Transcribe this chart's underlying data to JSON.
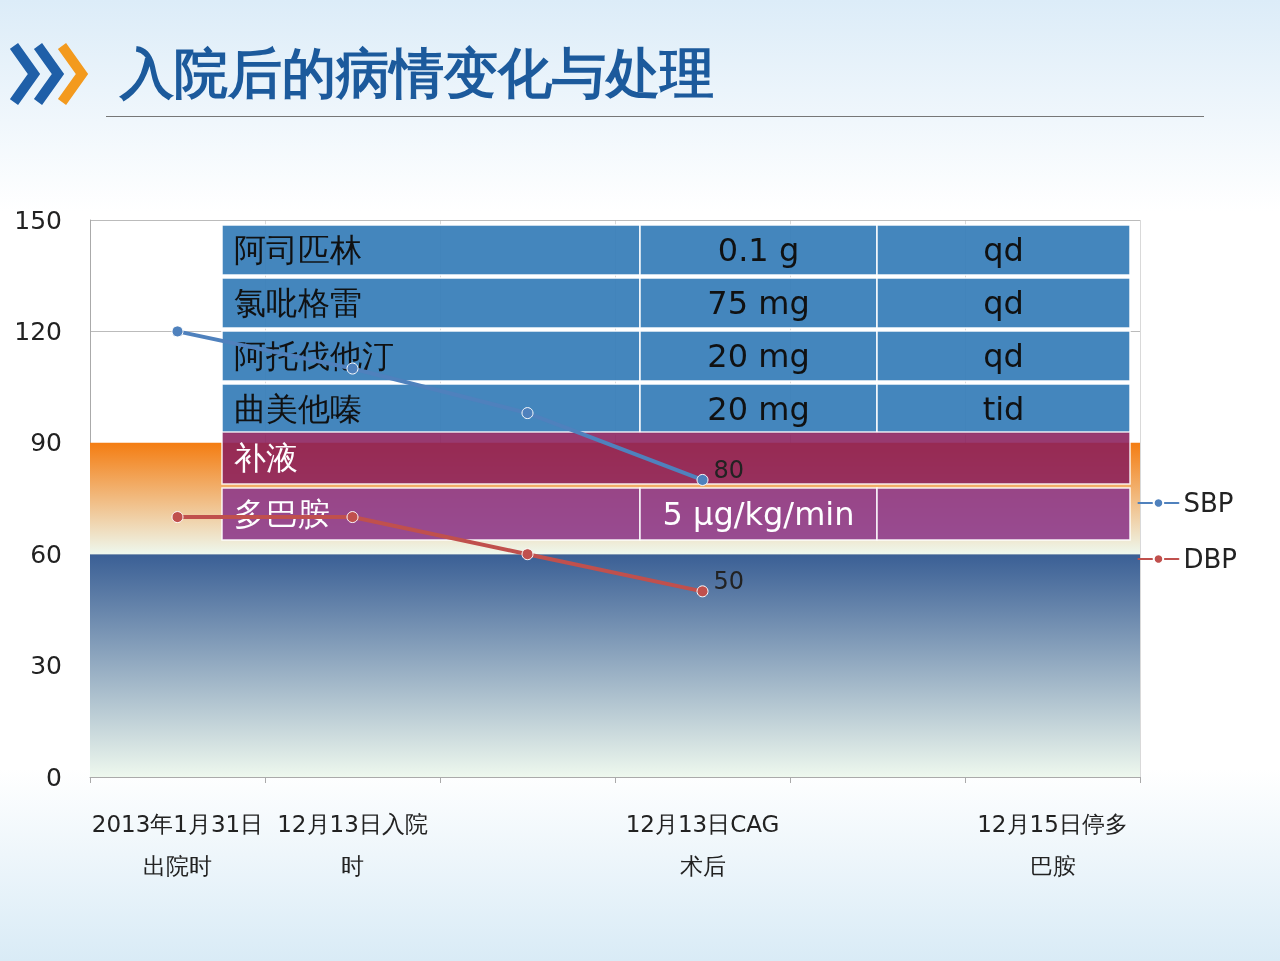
{
  "chart_data": {
    "type": "line",
    "title": "入院后的病情变化与处理",
    "categories": [
      "2013年1月31日出院时",
      "12月13日入院时",
      null,
      "12月13日CAG术后",
      null,
      "12月15日停多巴胺"
    ],
    "series": [
      {
        "name": "SBP",
        "color": "#4f81bd",
        "values": [
          120,
          110,
          98,
          80,
          null,
          null
        ],
        "value_labels": [
          null,
          null,
          null,
          "80",
          null,
          null
        ]
      },
      {
        "name": "DBP",
        "color": "#c0504d",
        "values": [
          70,
          70,
          60,
          50,
          null,
          null
        ],
        "value_labels": [
          null,
          null,
          null,
          "50",
          null,
          null
        ]
      }
    ],
    "ylim": [
      0,
      150
    ],
    "yticks": [
      0,
      30,
      60,
      90,
      120,
      150
    ],
    "grid": true,
    "legend": "right",
    "marker": "circle",
    "line_style": "solid",
    "bands": [
      {
        "axis": "y",
        "from": 0,
        "to": 60,
        "color": "#3a5f95"
      },
      {
        "axis": "y",
        "from": 60,
        "to": 90,
        "color": "#f47d12"
      }
    ],
    "annotations": [
      "阿司匹林",
      "0.1 g",
      "qd",
      "氯吡格雷",
      "75 mg",
      "qd",
      "阿托伐他汀",
      "20 mg",
      "qd",
      "曲美他嗪",
      "20 mg",
      "tid",
      "补液",
      "多巴胺",
      "5 μg/kg/min"
    ]
  }
}
